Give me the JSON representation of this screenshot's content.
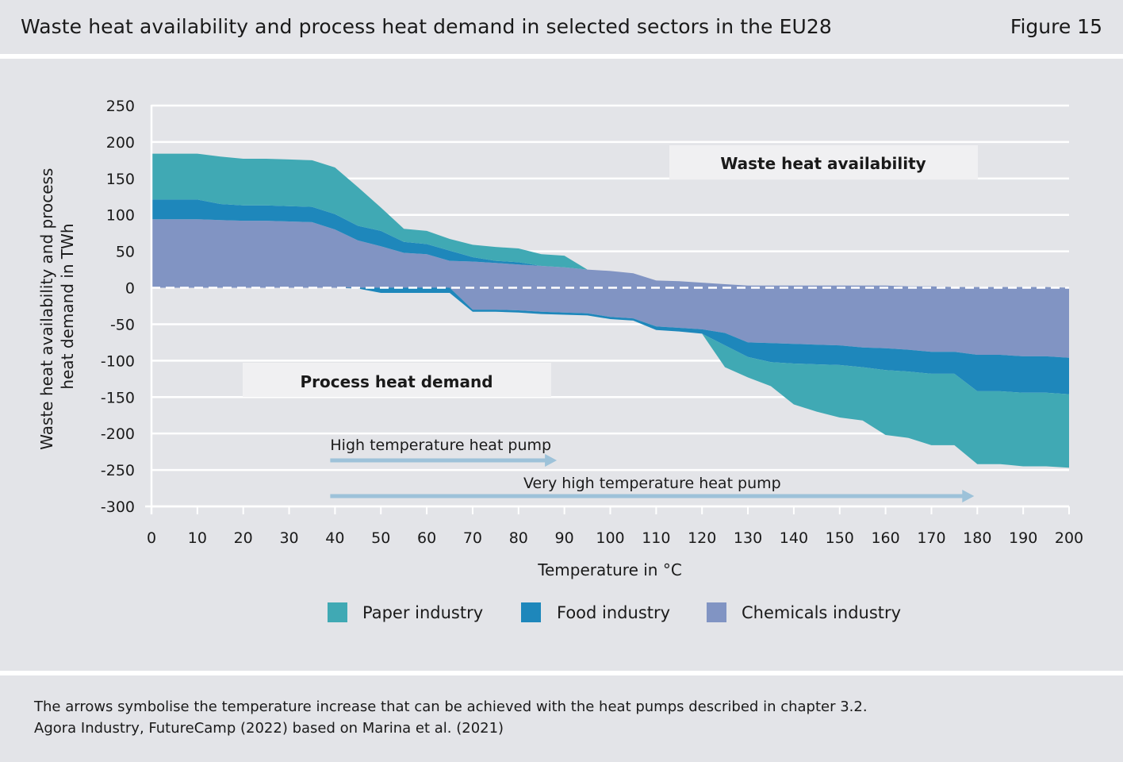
{
  "header": {
    "title": "Waste heat availability and process heat demand in selected sectors in the EU28",
    "figure_label": "Figure 15"
  },
  "colors": {
    "paper": "#40a9b4",
    "food": "#1e87bb",
    "chemicals": "#8194c3",
    "arrow": "#9dc2d9",
    "grid": "#ffffff",
    "label_box": "#f0f0f2",
    "background": "#e3e4e8"
  },
  "chart_data": {
    "type": "area",
    "xlabel": "Temperature in °C",
    "ylabel_lines": [
      "Waste heat availability and process",
      "heat demand in TWh"
    ],
    "xlim": [
      0,
      200
    ],
    "ylim": [
      -300,
      250
    ],
    "x_ticks": [
      0,
      10,
      20,
      30,
      40,
      50,
      60,
      70,
      80,
      90,
      100,
      110,
      120,
      130,
      140,
      150,
      160,
      170,
      180,
      190,
      200
    ],
    "y_ticks": [
      250,
      200,
      150,
      100,
      50,
      0,
      -50,
      -100,
      -150,
      -200,
      -250,
      -300
    ],
    "grid": true,
    "zero_line": "dashed",
    "stacking": "cumulative, stacked away from zero (chemicals innermost, then food, then paper)",
    "legend_position": "bottom",
    "region_labels": {
      "availability": "Waste heat availability",
      "demand": "Process heat demand"
    },
    "annotations": [
      {
        "text": "High temperature heat pump",
        "from_x": 40,
        "to_x": 88
      },
      {
        "text": "Very high temperature heat pump",
        "from_x": 40,
        "to_x": 180
      }
    ],
    "waste_heat_availability": {
      "x": [
        0,
        10,
        15,
        20,
        25,
        30,
        35,
        40,
        45,
        50,
        55,
        60,
        65,
        70,
        75,
        80,
        85,
        90,
        95,
        100,
        105,
        110,
        115,
        120,
        125,
        130,
        135,
        140,
        145,
        150,
        155,
        160,
        165,
        170,
        175,
        180,
        185,
        190,
        195,
        200
      ],
      "series": [
        {
          "name": "Chemicals industry",
          "values": [
            94,
            94,
            93,
            92,
            92,
            91,
            90,
            80,
            65,
            57,
            48,
            46,
            37,
            36,
            34,
            32,
            30,
            28,
            25,
            23,
            20,
            10,
            9,
            7,
            5,
            3,
            3,
            3,
            3,
            3,
            3,
            3,
            2,
            2,
            1,
            1,
            1,
            1,
            1,
            0
          ]
        },
        {
          "name": "Food industry",
          "values": [
            27,
            27,
            22,
            21,
            21,
            21,
            21,
            21,
            20,
            21,
            15,
            14,
            14,
            6,
            3,
            3,
            0,
            0,
            0,
            0,
            0,
            0,
            0,
            0,
            0,
            0,
            0,
            0,
            0,
            0,
            0,
            0,
            0,
            0,
            0,
            0,
            0,
            0,
            0,
            0
          ]
        },
        {
          "name": "Paper industry",
          "values": [
            63,
            63,
            65,
            64,
            64,
            64,
            64,
            64,
            53,
            32,
            18,
            18,
            16,
            17,
            19,
            19,
            16,
            16,
            0,
            0,
            0,
            0,
            0,
            0,
            0,
            0,
            0,
            0,
            0,
            0,
            0,
            0,
            0,
            0,
            0,
            0,
            0,
            0,
            0,
            0
          ]
        }
      ]
    },
    "process_heat_demand": {
      "x": [
        0,
        10,
        15,
        20,
        25,
        30,
        35,
        40,
        45,
        50,
        55,
        60,
        65,
        70,
        75,
        80,
        85,
        90,
        95,
        100,
        105,
        110,
        115,
        120,
        125,
        130,
        135,
        140,
        145,
        150,
        155,
        160,
        165,
        170,
        175,
        180,
        185,
        190,
        195,
        200
      ],
      "series": [
        {
          "name": "Chemicals industry",
          "values": [
            0,
            0,
            0,
            0,
            0,
            0,
            0,
            0,
            0,
            0,
            0,
            0,
            0,
            -30,
            -30,
            -31,
            -33,
            -34,
            -35,
            -40,
            -42,
            -53,
            -55,
            -57,
            -62,
            -75,
            -76,
            -77,
            -78,
            -79,
            -82,
            -83,
            -85,
            -88,
            -88,
            -92,
            -92,
            -94,
            -94,
            -96
          ]
        },
        {
          "name": "Food industry",
          "values": [
            0,
            0,
            0,
            0,
            0,
            0,
            0,
            0,
            -1,
            -7,
            -7,
            -7,
            -7,
            -3,
            -3,
            -3,
            -3,
            -3,
            -3,
            -3,
            -3,
            -5,
            -5,
            -6,
            -17,
            -20,
            -26,
            -27,
            -27,
            -27,
            -27,
            -30,
            -30,
            -30,
            -30,
            -50,
            -50,
            -50,
            -50,
            -50
          ]
        },
        {
          "name": "Paper industry",
          "values": [
            0,
            0,
            0,
            0,
            0,
            0,
            0,
            0,
            0,
            0,
            0,
            0,
            0,
            0,
            0,
            0,
            0,
            0,
            0,
            0,
            0,
            0,
            0,
            0,
            -30,
            -28,
            -33,
            -56,
            -65,
            -72,
            -73,
            -89,
            -91,
            -98,
            -98,
            -100,
            -100,
            -101,
            -101,
            -101
          ]
        }
      ]
    }
  },
  "legend": {
    "items": [
      {
        "label": "Paper industry",
        "color_key": "paper"
      },
      {
        "label": "Food industry",
        "color_key": "food"
      },
      {
        "label": "Chemicals industry",
        "color_key": "chemicals"
      }
    ]
  },
  "footer": {
    "note": "The arrows symbolise the temperature increase that can be achieved with the heat pumps described in chapter 3.2.",
    "source": "Agora Industry, FutureCamp (2022) based on Marina et al. (2021)"
  }
}
